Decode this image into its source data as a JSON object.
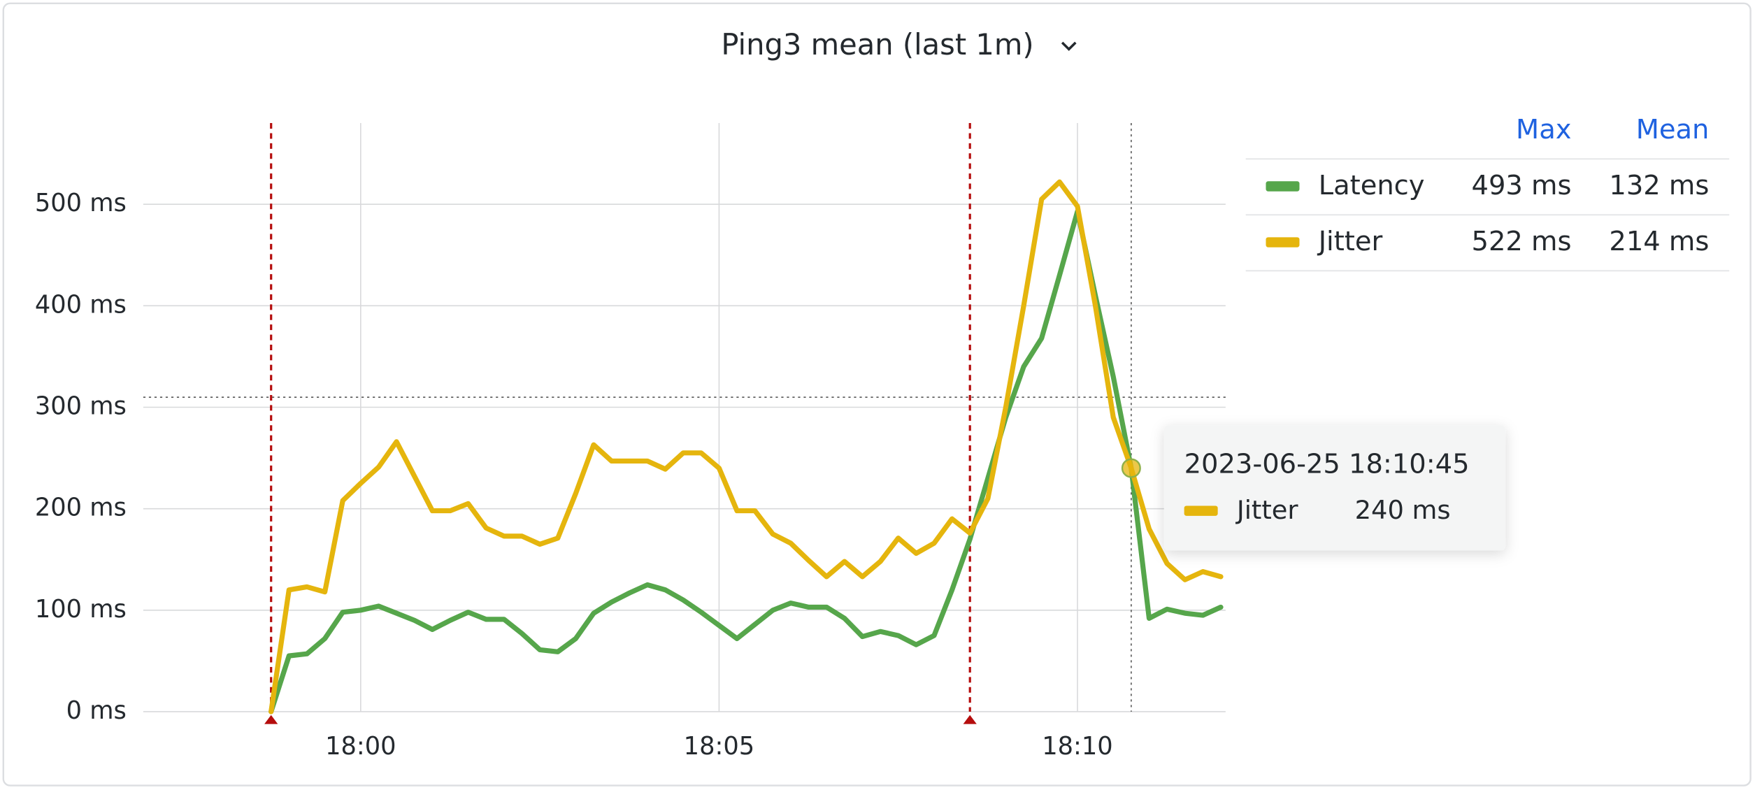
{
  "chart_data": {
    "type": "line",
    "title": "Ping3 mean (last 1m)",
    "x": [
      "17:58:45",
      "17:59:00",
      "17:59:15",
      "17:59:30",
      "17:59:45",
      "18:00:00",
      "18:00:15",
      "18:00:30",
      "18:00:45",
      "18:01:00",
      "18:01:15",
      "18:01:30",
      "18:01:45",
      "18:02:00",
      "18:02:15",
      "18:02:30",
      "18:02:45",
      "18:03:00",
      "18:03:15",
      "18:03:30",
      "18:03:45",
      "18:04:00",
      "18:04:15",
      "18:04:30",
      "18:04:45",
      "18:05:00",
      "18:05:15",
      "18:05:30",
      "18:05:45",
      "18:06:00",
      "18:06:15",
      "18:06:30",
      "18:06:45",
      "18:07:00",
      "18:07:15",
      "18:07:30",
      "18:07:45",
      "18:08:00",
      "18:08:15",
      "18:08:30",
      "18:08:45",
      "18:09:00",
      "18:09:15",
      "18:09:30",
      "18:09:45",
      "18:10:00",
      "18:10:15",
      "18:10:30",
      "18:10:45",
      "18:11:00",
      "18:11:15",
      "18:11:30",
      "18:11:45",
      "18:12:00"
    ],
    "series": [
      {
        "name": "Latency",
        "color": "#56a64b",
        "values": [
          0,
          55,
          57,
          72,
          98,
          100,
          104,
          97,
          90,
          81,
          90,
          98,
          91,
          91,
          77,
          61,
          59,
          72,
          97,
          108,
          117,
          125,
          120,
          110,
          98,
          85,
          72,
          86,
          100,
          107,
          103,
          103,
          92,
          74,
          79,
          75,
          66,
          75,
          120,
          170,
          230,
          290,
          340,
          368,
          430,
          493,
          410,
          330,
          240,
          92,
          101,
          97,
          95,
          103
        ]
      },
      {
        "name": "Jitter",
        "color": "#e5b50d",
        "values": [
          0,
          120,
          123,
          118,
          208,
          225,
          241,
          266,
          232,
          198,
          198,
          205,
          181,
          173,
          173,
          165,
          171,
          215,
          263,
          247,
          247,
          247,
          239,
          255,
          255,
          240,
          198,
          198,
          175,
          166,
          149,
          133,
          148,
          133,
          148,
          171,
          156,
          166,
          190,
          176,
          210,
          300,
          400,
          505,
          522,
          498,
          400,
          290,
          240,
          180,
          146,
          130,
          138,
          133
        ]
      }
    ],
    "xlim": [
      "17:56:58",
      "18:12:04"
    ],
    "xticks": [
      {
        "value": "18:00:00",
        "label": "18:00"
      },
      {
        "value": "18:05:00",
        "label": "18:05"
      },
      {
        "value": "18:10:00",
        "label": "18:10"
      }
    ],
    "ylim": [
      0,
      580
    ],
    "yticks": [
      {
        "value": 0,
        "label": "0 ms"
      },
      {
        "value": 100,
        "label": "100 ms"
      },
      {
        "value": 200,
        "label": "200 ms"
      },
      {
        "value": 300,
        "label": "300 ms"
      },
      {
        "value": 400,
        "label": "400 ms"
      },
      {
        "value": 500,
        "label": "500 ms"
      }
    ],
    "grid": true,
    "annotations": {
      "color": "#b50d0d",
      "x": [
        "17:58:45",
        "18:08:30"
      ]
    },
    "legend": {
      "position": "right",
      "columns": [
        "Max",
        "Mean"
      ],
      "rows": [
        [
          "493 ms",
          "132 ms"
        ],
        [
          "522 ms",
          "214 ms"
        ]
      ]
    },
    "tooltip": {
      "time": "2023-06-25 18:10:45",
      "series": "Jitter",
      "value": 240,
      "value_label": "240 ms"
    }
  }
}
